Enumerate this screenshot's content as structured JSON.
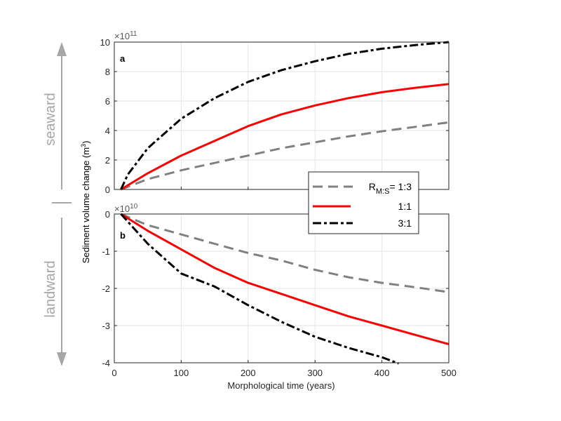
{
  "chart_data": [
    {
      "type": "line",
      "panel_label": "a",
      "exponent": "×10",
      "exponent_power": "11",
      "xlim": [
        0,
        500
      ],
      "ylim": [
        0,
        10
      ],
      "yticks": [
        "0",
        "2",
        "4",
        "6",
        "8",
        "10"
      ],
      "grid": true,
      "series": [
        {
          "key": "ratio_1_3",
          "color": "#808080",
          "style": "dashed",
          "x": [
            10,
            50,
            100,
            150,
            200,
            250,
            300,
            350,
            400,
            450,
            500
          ],
          "y": [
            0,
            0.7,
            1.3,
            1.8,
            2.3,
            2.8,
            3.2,
            3.6,
            3.95,
            4.25,
            4.55
          ]
        },
        {
          "key": "ratio_1_1",
          "color": "#ff0000",
          "style": "solid",
          "x": [
            10,
            50,
            100,
            150,
            200,
            250,
            300,
            350,
            400,
            450,
            500
          ],
          "y": [
            0,
            1.1,
            2.3,
            3.3,
            4.3,
            5.1,
            5.7,
            6.2,
            6.6,
            6.9,
            7.15
          ]
        },
        {
          "key": "ratio_3_1",
          "color": "#000000",
          "style": "dashdot",
          "x": [
            10,
            20,
            50,
            100,
            150,
            200,
            250,
            300,
            350,
            400,
            450,
            500
          ],
          "y": [
            0,
            1.0,
            2.8,
            4.8,
            6.2,
            7.3,
            8.1,
            8.7,
            9.2,
            9.55,
            9.8,
            10
          ]
        }
      ]
    },
    {
      "type": "line",
      "panel_label": "b",
      "exponent": "×10",
      "exponent_power": "10",
      "xlim": [
        0,
        500
      ],
      "ylim": [
        -4,
        0
      ],
      "yticks": [
        "-4",
        "-3",
        "-2",
        "-1",
        "0"
      ],
      "xticks": [
        "0",
        "100",
        "200",
        "300",
        "400",
        "500"
      ],
      "xlabel": "Morphological time (years)",
      "grid": true,
      "series": [
        {
          "key": "ratio_1_3",
          "color": "#808080",
          "style": "dashed",
          "x": [
            10,
            50,
            100,
            150,
            200,
            250,
            300,
            350,
            400,
            450,
            500
          ],
          "y": [
            0,
            -0.3,
            -0.55,
            -0.8,
            -1.05,
            -1.25,
            -1.5,
            -1.7,
            -1.85,
            -1.97,
            -2.1
          ]
        },
        {
          "key": "ratio_1_1",
          "color": "#ff0000",
          "style": "solid",
          "x": [
            10,
            50,
            100,
            150,
            200,
            250,
            300,
            350,
            400,
            450,
            500
          ],
          "y": [
            0,
            -0.45,
            -0.95,
            -1.45,
            -1.85,
            -2.15,
            -2.45,
            -2.75,
            -3.0,
            -3.25,
            -3.5
          ]
        },
        {
          "key": "ratio_3_1",
          "color": "#000000",
          "style": "dashdot",
          "x": [
            10,
            50,
            100,
            150,
            200,
            250,
            300,
            350,
            400,
            425
          ],
          "y": [
            0,
            -0.8,
            -1.6,
            -1.95,
            -2.45,
            -2.9,
            -3.3,
            -3.6,
            -3.85,
            -4.02
          ]
        }
      ]
    }
  ],
  "ylabel": "Sediment volume change (m",
  "ylabel_sup": "3",
  "ylabel_close": ")",
  "legend": {
    "title_prefix": "R",
    "title_sub": "M:S",
    "entries": [
      "= 1:3",
      "1:1",
      "3:1"
    ]
  },
  "annotations": {
    "up": "seaward",
    "down": "landward",
    "arrow_color": "#a6a6a6"
  }
}
